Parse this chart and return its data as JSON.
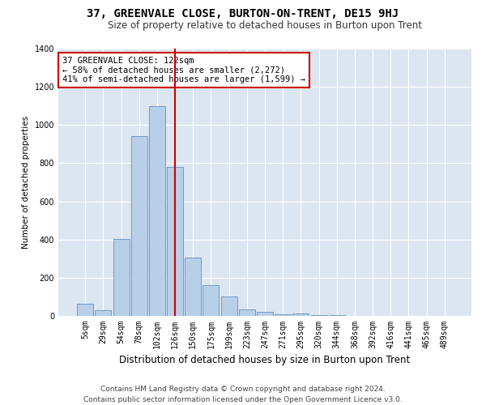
{
  "title": "37, GREENVALE CLOSE, BURTON-ON-TRENT, DE15 9HJ",
  "subtitle": "Size of property relative to detached houses in Burton upon Trent",
  "xlabel": "Distribution of detached houses by size in Burton upon Trent",
  "ylabel": "Number of detached properties",
  "bar_labels": [
    "5sqm",
    "29sqm",
    "54sqm",
    "78sqm",
    "102sqm",
    "126sqm",
    "150sqm",
    "175sqm",
    "199sqm",
    "223sqm",
    "247sqm",
    "271sqm",
    "295sqm",
    "320sqm",
    "344sqm",
    "368sqm",
    "392sqm",
    "416sqm",
    "441sqm",
    "465sqm",
    "489sqm"
  ],
  "bar_values": [
    65,
    28,
    405,
    940,
    1100,
    780,
    305,
    160,
    100,
    35,
    20,
    10,
    12,
    5,
    3,
    2,
    1,
    0,
    0,
    0,
    0
  ],
  "bar_color": "#b8cfe8",
  "bar_edge_color": "#6090c0",
  "vline_x_idx": 5,
  "vline_color": "#cc0000",
  "annotation_box_text": "37 GREENVALE CLOSE: 122sqm\n← 58% of detached houses are smaller (2,272)\n41% of semi-detached houses are larger (1,599) →",
  "annotation_box_color": "#cc0000",
  "background_color": "#dce6f0",
  "grid_color": "#ffffff",
  "ylim": [
    0,
    1400
  ],
  "yticks": [
    0,
    200,
    400,
    600,
    800,
    1000,
    1200,
    1400
  ],
  "footer_line1": "Contains HM Land Registry data © Crown copyright and database right 2024.",
  "footer_line2": "Contains public sector information licensed under the Open Government Licence v3.0.",
  "title_fontsize": 10,
  "subtitle_fontsize": 8.5,
  "xlabel_fontsize": 8.5,
  "ylabel_fontsize": 7.5,
  "tick_fontsize": 7,
  "annotation_fontsize": 7.5,
  "footer_fontsize": 6.5
}
